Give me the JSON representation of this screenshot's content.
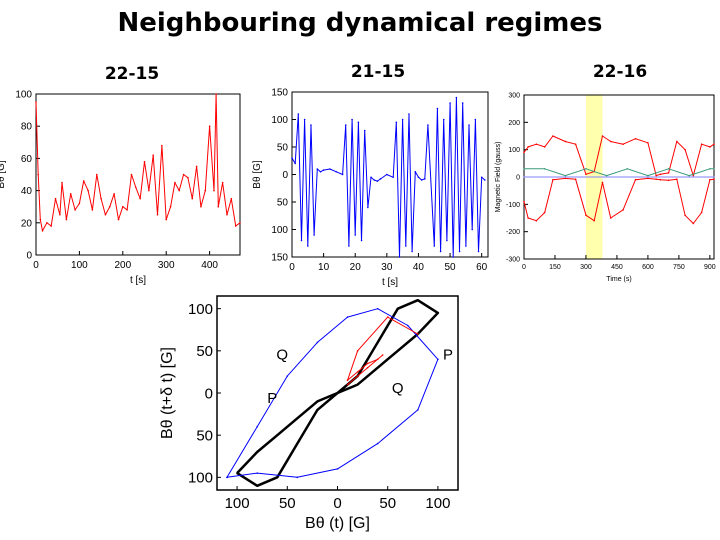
{
  "slide": {
    "title": "Neighbouring dynamical regimes"
  },
  "chart_data": [
    {
      "type": "line",
      "title": "22-15",
      "xlabel": "t [s]",
      "ylabel": "Bθ [G]",
      "xlim": [
        0,
        470
      ],
      "ylim": [
        0,
        100
      ],
      "xticks": [
        0,
        100,
        200,
        300,
        400
      ],
      "yticks": [
        0,
        20,
        40,
        60,
        80,
        100
      ],
      "color": "#ff0000",
      "series": [
        {
          "x": [
            0,
            5,
            10,
            15,
            25,
            35,
            45,
            55,
            60,
            70,
            80,
            90,
            100,
            110,
            120,
            130,
            140,
            150,
            160,
            170,
            180,
            190,
            200,
            210,
            220,
            230,
            240,
            250,
            260,
            270,
            280,
            290,
            300,
            310,
            320,
            330,
            340,
            350,
            360,
            370,
            380,
            390,
            400,
            410,
            415,
            420,
            430,
            440,
            450,
            460,
            470
          ],
          "y": [
            95,
            50,
            22,
            15,
            20,
            18,
            35,
            25,
            45,
            22,
            38,
            28,
            32,
            46,
            40,
            28,
            50,
            35,
            25,
            30,
            38,
            22,
            30,
            28,
            50,
            42,
            35,
            58,
            40,
            62,
            25,
            68,
            22,
            30,
            45,
            40,
            50,
            48,
            35,
            55,
            30,
            40,
            80,
            40,
            100,
            30,
            45,
            25,
            35,
            18,
            20
          ]
        }
      ]
    },
    {
      "type": "line",
      "title": "21-15",
      "xlabel": "t [s]",
      "ylabel": "Bθ [G]",
      "xlim": [
        0,
        62
      ],
      "ylim": [
        -150,
        150
      ],
      "xticks": [
        0,
        10,
        20,
        30,
        40,
        50,
        60
      ],
      "yticks": [
        -150,
        -100,
        -50,
        0,
        50,
        100,
        150
      ],
      "ytick_labels": [
        "150",
        "100",
        "50",
        "0",
        "50",
        "100",
        "150"
      ],
      "color": "#0000ff",
      "series": [
        {
          "x": [
            0,
            1,
            2,
            3,
            4,
            5,
            6,
            7,
            8,
            9,
            10,
            12,
            14,
            16,
            17,
            18,
            19,
            20,
            21,
            22,
            23,
            24,
            25,
            26,
            27,
            28,
            30,
            32,
            33,
            34,
            35,
            36,
            37,
            38,
            39,
            40,
            41,
            42,
            43,
            45,
            46,
            47,
            48,
            49,
            50,
            51,
            52,
            53,
            54,
            55,
            56,
            57,
            58,
            59,
            60,
            61
          ],
          "y": [
            30,
            20,
            110,
            -120,
            100,
            -130,
            90,
            -110,
            10,
            5,
            8,
            10,
            5,
            0,
            90,
            -130,
            100,
            -110,
            95,
            -120,
            80,
            -60,
            -5,
            -10,
            -12,
            -8,
            0,
            -5,
            95,
            -150,
            100,
            -130,
            110,
            -140,
            5,
            -5,
            -10,
            -8,
            90,
            -130,
            120,
            -140,
            100,
            -120,
            130,
            -150,
            140,
            -140,
            130,
            -130,
            90,
            -100,
            100,
            -140,
            -5,
            -10
          ]
        }
      ]
    },
    {
      "type": "line",
      "title": "22-16",
      "xlabel": "Time (s)",
      "ylabel": "Magnetic Field (gauss)",
      "xlim": [
        0,
        920
      ],
      "ylim": [
        -300,
        300
      ],
      "xticks": [
        0,
        150,
        300,
        450,
        600,
        750,
        900
      ],
      "yticks": [
        -300,
        -200,
        -100,
        0,
        100,
        200,
        300
      ],
      "highlight_color": "#ffff99",
      "series": [
        {
          "name": "upper",
          "color": "#ff0000",
          "x": [
            0,
            20,
            60,
            100,
            140,
            200,
            250,
            300,
            340,
            380,
            420,
            480,
            540,
            600,
            640,
            660,
            700,
            740,
            780,
            820,
            860,
            900,
            920
          ],
          "y": [
            90,
            110,
            120,
            110,
            150,
            130,
            120,
            10,
            20,
            150,
            130,
            120,
            140,
            125,
            5,
            10,
            15,
            130,
            100,
            5,
            120,
            110,
            120
          ]
        },
        {
          "name": "lower",
          "color": "#ff0000",
          "x": [
            0,
            20,
            60,
            100,
            140,
            200,
            250,
            300,
            340,
            380,
            420,
            480,
            540,
            600,
            640,
            660,
            700,
            740,
            780,
            820,
            860,
            900,
            920
          ],
          "y": [
            -90,
            -150,
            -160,
            -130,
            -10,
            -5,
            -8,
            -140,
            -160,
            -20,
            -150,
            -120,
            -10,
            -5,
            -8,
            -10,
            -12,
            -8,
            -140,
            -170,
            -130,
            -10,
            -8
          ]
        },
        {
          "name": "middle",
          "color": "#3a9a7a",
          "x": [
            0,
            100,
            200,
            300,
            400,
            500,
            600,
            700,
            800,
            900,
            920
          ],
          "y": [
            30,
            30,
            5,
            30,
            5,
            30,
            5,
            30,
            5,
            30,
            30
          ]
        },
        {
          "name": "baseline",
          "color": "#8080ff",
          "x": [
            0,
            920
          ],
          "y": [
            0,
            0
          ]
        }
      ]
    },
    {
      "type": "line",
      "xlabel": "Bθ (t) [G]",
      "ylabel": "Bθ (t+δ t) [G]",
      "xlim": [
        -120,
        120
      ],
      "ylim": [
        -115,
        115
      ],
      "xticks": [
        -100,
        -50,
        0,
        50,
        100
      ],
      "xtick_labels": [
        "100",
        "50",
        "0",
        "50",
        "100"
      ],
      "yticks": [
        -100,
        -50,
        0,
        50,
        100
      ],
      "ytick_labels": [
        "100",
        "50",
        "0",
        "50",
        "100"
      ],
      "annotations": [
        {
          "text": "Q",
          "x": -55,
          "y": 40
        },
        {
          "text": "Q",
          "x": 60,
          "y": 0
        },
        {
          "text": "P",
          "x": 110,
          "y": 40
        },
        {
          "text": "P",
          "x": -65,
          "y": -12
        }
      ],
      "series": [
        {
          "name": "black-curve",
          "color": "#000000",
          "x": [
            -100,
            -80,
            -60,
            -40,
            -20,
            0,
            20,
            40,
            60,
            80,
            100,
            80,
            60,
            40,
            20,
            0,
            -20,
            -40,
            -60,
            -80,
            -100
          ],
          "y": [
            -95,
            -70,
            -50,
            -30,
            -10,
            0,
            10,
            30,
            50,
            70,
            95,
            110,
            100,
            60,
            20,
            0,
            -20,
            -60,
            -100,
            -110,
            -95
          ]
        },
        {
          "name": "blue-orbits",
          "color": "#0000ff",
          "x": [
            -110,
            -80,
            -50,
            -20,
            10,
            40,
            70,
            100,
            80,
            40,
            0,
            -40,
            -80,
            -110
          ],
          "y": [
            -100,
            -40,
            20,
            60,
            90,
            100,
            80,
            40,
            -20,
            -60,
            -90,
            -100,
            -95,
            -100
          ]
        },
        {
          "name": "red-loop",
          "color": "#ff0000",
          "x": [
            10,
            20,
            30,
            40,
            45,
            40,
            30,
            20,
            10,
            20,
            50,
            80
          ],
          "y": [
            10,
            20,
            30,
            40,
            45,
            40,
            35,
            25,
            15,
            50,
            90,
            70
          ]
        }
      ]
    }
  ]
}
